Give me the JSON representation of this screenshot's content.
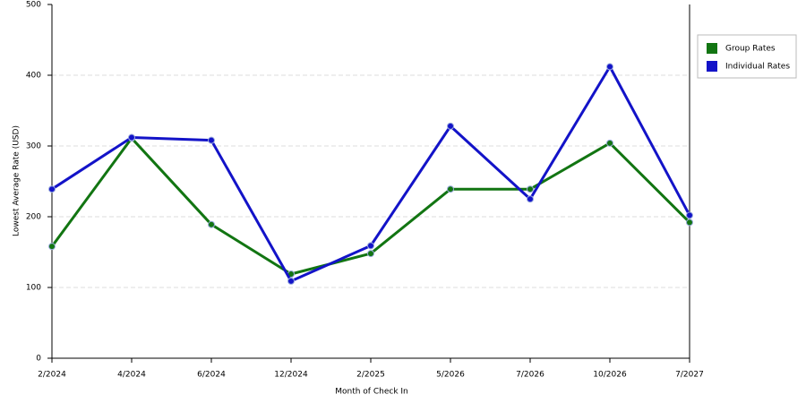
{
  "chart_data": {
    "type": "line",
    "x_label": "Month of Check In",
    "y_label": "Lowest Average Rate (USD)",
    "categories": [
      "2/2024",
      "4/2024",
      "6/2024",
      "12/2024",
      "2/2025",
      "5/2026",
      "7/2026",
      "10/2026",
      "7/2027"
    ],
    "series": [
      {
        "name": "Group Rates",
        "color": "#127512",
        "values": [
          158,
          311,
          189,
          119,
          148,
          239,
          239,
          304,
          192
        ]
      },
      {
        "name": "Individual Rates",
        "color": "#1313c8",
        "values": [
          239,
          312,
          308,
          109,
          159,
          328,
          225,
          412,
          202
        ]
      }
    ],
    "ylim": [
      0,
      500
    ],
    "yticks": [
      0,
      100,
      200,
      300,
      400,
      500
    ],
    "grid": true,
    "legend": "right"
  }
}
